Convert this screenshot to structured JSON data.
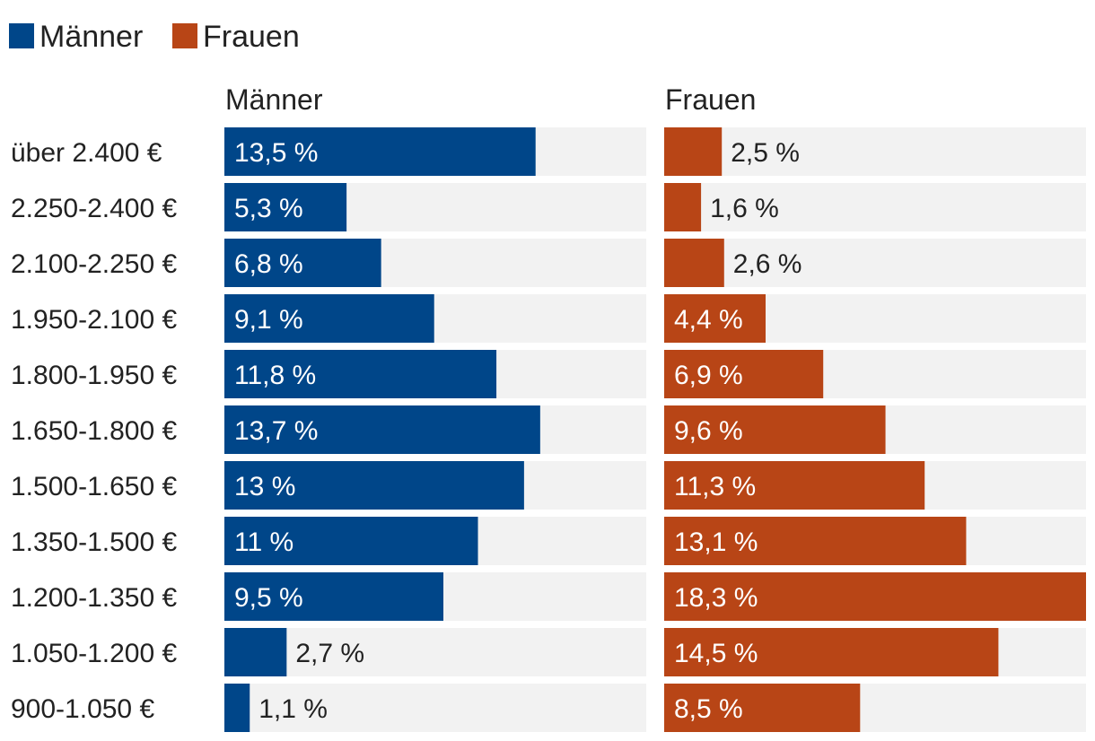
{
  "chart_data": {
    "type": "bar",
    "orientation": "horizontal",
    "layout": "side-by-side panels",
    "legend": {
      "placement": "top-left",
      "entries": [
        {
          "label": "Männer",
          "color": "#004689"
        },
        {
          "label": "Frauen",
          "color": "#b84516"
        }
      ]
    },
    "value_suffix": " %",
    "categories": [
      "über 2.400 €",
      "2.250-2.400 €",
      "2.100-2.250 €",
      "1.950-2.100 €",
      "1.800-1.950 €",
      "1.650-1.800 €",
      "1.500-1.650 €",
      "1.350-1.500 €",
      "1.200-1.350 €",
      "1.050-1.200 €",
      "900-1.050 €"
    ],
    "series": [
      {
        "name": "Männer",
        "color": "#004689",
        "values": [
          13.5,
          5.3,
          6.8,
          9.1,
          11.8,
          13.7,
          13,
          11,
          9.5,
          2.7,
          1.1
        ],
        "labels": [
          "13,5 %",
          "5,3 %",
          "6,8 %",
          "9,1 %",
          "11,8 %",
          "13,7 %",
          "13 %",
          "11 %",
          "9,5 %",
          "2,7 %",
          "1,1 %"
        ]
      },
      {
        "name": "Frauen",
        "color": "#b84516",
        "values": [
          2.5,
          1.6,
          2.6,
          4.4,
          6.9,
          9.6,
          11.3,
          13.1,
          18.3,
          14.5,
          8.5
        ],
        "labels": [
          "2,5 %",
          "1,6 %",
          "2,6 %",
          "4,4 %",
          "6,9 %",
          "9,6 %",
          "11,3 %",
          "13,1 %",
          "18,3 %",
          "14,5 %",
          "8,5 %"
        ]
      }
    ],
    "xlim": [
      0,
      18.3
    ],
    "track_color": "#f2f2f2",
    "title": "",
    "xlabel": "",
    "ylabel": ""
  }
}
